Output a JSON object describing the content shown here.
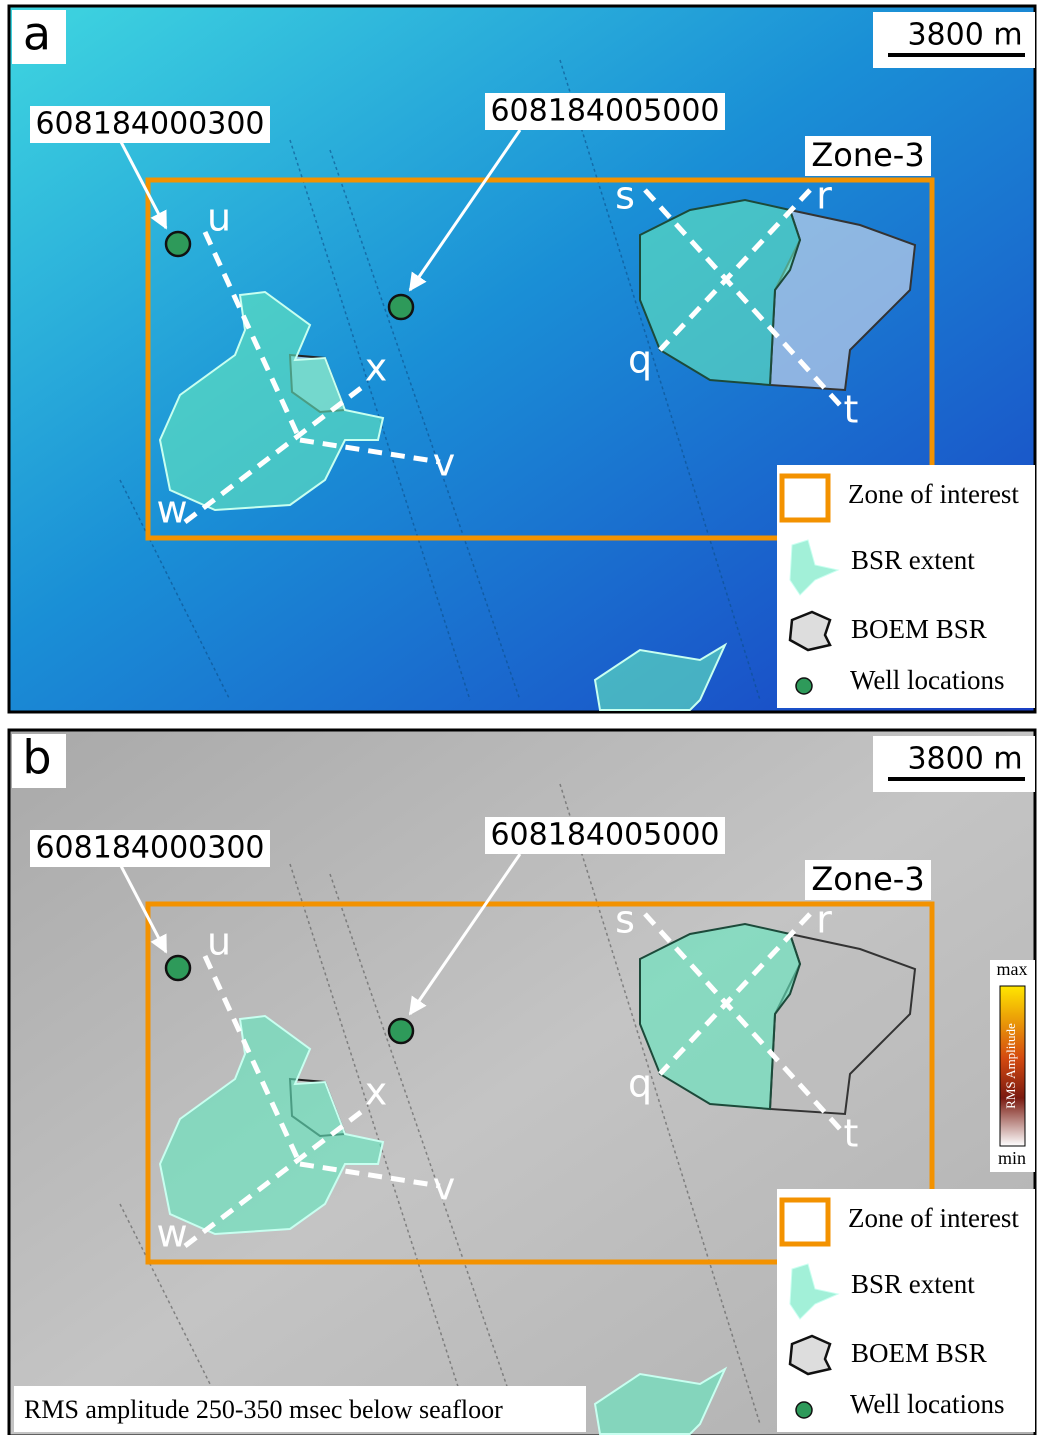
{
  "panels": [
    {
      "label": "a",
      "scale": "3800 m",
      "wells": [
        "608184000300",
        "608184005000"
      ],
      "zone": "Zone-3",
      "line_labels": [
        "s",
        "r",
        "q",
        "t",
        "u",
        "x",
        "v",
        "w"
      ],
      "legend": [
        "Zone of interest",
        "BSR extent",
        "BOEM BSR",
        "Well locations"
      ]
    },
    {
      "label": "b",
      "scale": "3800 m",
      "wells": [
        "608184000300",
        "608184005000"
      ],
      "zone": "Zone-3",
      "line_labels": [
        "s",
        "r",
        "q",
        "t",
        "u",
        "x",
        "v",
        "w"
      ],
      "legend": [
        "Zone of interest",
        "BSR extent",
        "BOEM BSR",
        "Well locations"
      ],
      "colorbar": {
        "max": "max",
        "min": "min",
        "title": "RMS Amplitude"
      },
      "caption": "RMS amplitude 250-350 msec below seafloor"
    }
  ]
}
